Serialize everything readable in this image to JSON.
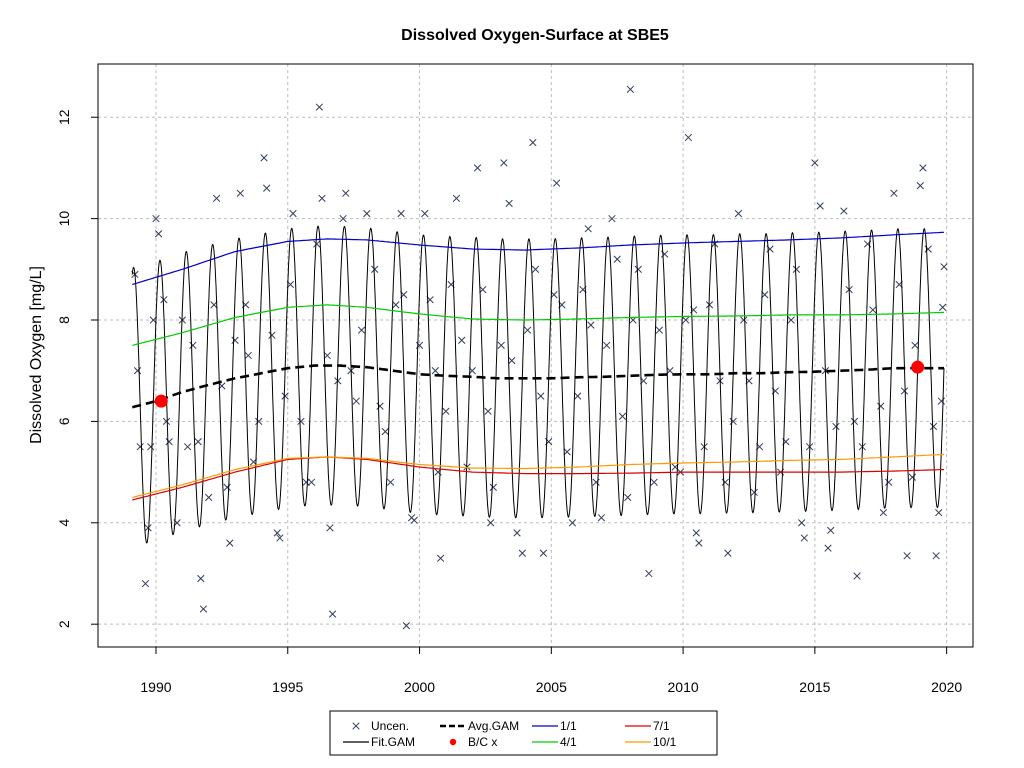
{
  "chart_data": {
    "type": "line",
    "title": "Dissolved Oxygen-Surface at SBE5",
    "xlabel": "",
    "ylabel": "Dissolved Oxygen [mg/L]",
    "xlim": [
      1987.8,
      2021.0
    ],
    "ylim": [
      1.55,
      13.05
    ],
    "xticks": [
      1990,
      1995,
      2000,
      2005,
      2010,
      2015,
      2020
    ],
    "yticks": [
      2,
      4,
      6,
      8,
      10,
      12
    ],
    "grid": true,
    "legend_position": "bottom",
    "colors": {
      "uncen": "#2f3c5a",
      "fit_gam": "#000000",
      "avg_gam": "#000000",
      "bc": "#ff0000",
      "q1": "#0000cc",
      "q4": "#00cc00",
      "q7": "#dd0000",
      "q10": "#ff9900",
      "grid": "#bdbdbd"
    },
    "legend": [
      {
        "key": "uncen",
        "label": "Uncen.",
        "marker": "x"
      },
      {
        "key": "fit",
        "label": "Fit.GAM",
        "marker": "line"
      },
      {
        "key": "avg",
        "label": "Avg.GAM",
        "marker": "dash"
      },
      {
        "key": "bc",
        "label": "B/C x",
        "marker": "dot"
      },
      {
        "key": "q1",
        "label": "1/1",
        "marker": "line"
      },
      {
        "key": "q4",
        "label": "4/1",
        "marker": "line"
      },
      {
        "key": "q7",
        "label": "7/1",
        "marker": "line"
      },
      {
        "key": "q10",
        "label": "10/1",
        "marker": "line"
      }
    ],
    "fit_gam": {
      "x_range": [
        1989.1,
        2019.9
      ],
      "amplitude": 2.75,
      "peak_phase": 0.15
    },
    "series": [
      {
        "name": "1/1",
        "x": [
          1989.1,
          1991,
          1993,
          1995,
          1996.5,
          1998,
          2000,
          2002,
          2004,
          2006,
          2008,
          2010,
          2012,
          2014,
          2016,
          2018,
          2019.9
        ],
        "values": [
          8.7,
          9.0,
          9.35,
          9.55,
          9.6,
          9.58,
          9.48,
          9.4,
          9.38,
          9.42,
          9.48,
          9.52,
          9.55,
          9.58,
          9.62,
          9.68,
          9.73
        ]
      },
      {
        "name": "4/1",
        "x": [
          1989.1,
          1991,
          1993,
          1995,
          1996.5,
          1998,
          2000,
          2002,
          2004,
          2006,
          2008,
          2010,
          2012,
          2014,
          2016,
          2018,
          2019.9
        ],
        "values": [
          7.5,
          7.75,
          8.05,
          8.25,
          8.3,
          8.25,
          8.12,
          8.02,
          8.0,
          8.02,
          8.05,
          8.07,
          8.08,
          8.1,
          8.1,
          8.12,
          8.15
        ]
      },
      {
        "name": "7/1",
        "x": [
          1989.1,
          1991,
          1993,
          1995,
          1996.5,
          1998,
          2000,
          2002,
          2004,
          2006,
          2008,
          2010,
          2012,
          2014,
          2016,
          2018,
          2019.9
        ],
        "values": [
          4.45,
          4.7,
          5.0,
          5.25,
          5.3,
          5.25,
          5.1,
          5.0,
          4.97,
          4.97,
          4.98,
          5.0,
          5.0,
          5.0,
          5.0,
          5.02,
          5.05
        ]
      },
      {
        "name": "10/1",
        "x": [
          1989.1,
          1991,
          1993,
          1995,
          1996.5,
          1998,
          2000,
          2002,
          2004,
          2006,
          2008,
          2010,
          2012,
          2014,
          2016,
          2018,
          2019.9
        ],
        "values": [
          4.5,
          4.75,
          5.05,
          5.27,
          5.3,
          5.27,
          5.15,
          5.08,
          5.07,
          5.1,
          5.15,
          5.18,
          5.2,
          5.23,
          5.25,
          5.3,
          5.35
        ]
      },
      {
        "name": "Avg.GAM",
        "x": [
          1989.1,
          1990,
          1991,
          1992,
          1993,
          1994,
          1995,
          1996,
          1997,
          1998,
          1999,
          2000,
          2001,
          2002,
          2003,
          2004,
          2005,
          2006,
          2007,
          2008,
          2009,
          2010,
          2011,
          2012,
          2013,
          2014,
          2015,
          2016,
          2017,
          2018,
          2019,
          2019.9
        ],
        "values": [
          6.28,
          6.4,
          6.58,
          6.72,
          6.85,
          6.95,
          7.05,
          7.1,
          7.1,
          7.07,
          7.0,
          6.93,
          6.9,
          6.88,
          6.85,
          6.85,
          6.85,
          6.87,
          6.88,
          6.9,
          6.92,
          6.93,
          6.93,
          6.95,
          6.95,
          6.97,
          6.98,
          7.0,
          7.02,
          7.05,
          7.05,
          7.05
        ]
      }
    ],
    "bc_points": [
      {
        "x": 1990.2,
        "y": 6.4
      },
      {
        "x": 2018.9,
        "y": 7.07
      }
    ],
    "uncen_points": [
      [
        1989.2,
        8.9
      ],
      [
        1989.3,
        7.0
      ],
      [
        1989.4,
        5.5
      ],
      [
        1989.6,
        2.8
      ],
      [
        1989.7,
        3.9
      ],
      [
        1989.8,
        5.5
      ],
      [
        1989.9,
        8.0
      ],
      [
        1990.0,
        10.0
      ],
      [
        1990.1,
        9.7
      ],
      [
        1990.3,
        8.4
      ],
      [
        1990.4,
        6.0
      ],
      [
        1990.5,
        5.6
      ],
      [
        1990.8,
        4.0
      ],
      [
        1991.0,
        8.0
      ],
      [
        1991.2,
        5.5
      ],
      [
        1991.4,
        7.5
      ],
      [
        1991.6,
        5.6
      ],
      [
        1991.7,
        2.9
      ],
      [
        1991.8,
        2.3
      ],
      [
        1992.0,
        4.5
      ],
      [
        1992.2,
        8.3
      ],
      [
        1992.3,
        10.4
      ],
      [
        1992.5,
        6.7
      ],
      [
        1992.7,
        4.7
      ],
      [
        1992.8,
        3.6
      ],
      [
        1993.0,
        7.6
      ],
      [
        1993.2,
        10.5
      ],
      [
        1993.4,
        8.3
      ],
      [
        1993.5,
        7.3
      ],
      [
        1993.7,
        5.2
      ],
      [
        1993.9,
        6.0
      ],
      [
        1994.1,
        11.2
      ],
      [
        1994.2,
        10.6
      ],
      [
        1994.4,
        7.7
      ],
      [
        1994.6,
        3.8
      ],
      [
        1994.7,
        3.7
      ],
      [
        1994.9,
        6.5
      ],
      [
        1995.1,
        8.7
      ],
      [
        1995.2,
        10.1
      ],
      [
        1995.5,
        6.0
      ],
      [
        1995.7,
        4.8
      ],
      [
        1995.9,
        4.8
      ],
      [
        1996.1,
        9.5
      ],
      [
        1996.2,
        12.2
      ],
      [
        1996.3,
        10.4
      ],
      [
        1996.5,
        7.3
      ],
      [
        1996.6,
        3.9
      ],
      [
        1996.7,
        2.2
      ],
      [
        1996.9,
        6.8
      ],
      [
        1997.1,
        10.0
      ],
      [
        1997.2,
        10.5
      ],
      [
        1997.4,
        7.0
      ],
      [
        1997.6,
        6.4
      ],
      [
        1997.8,
        7.8
      ],
      [
        1998.0,
        10.1
      ],
      [
        1998.3,
        9.0
      ],
      [
        1998.5,
        6.3
      ],
      [
        1998.7,
        5.8
      ],
      [
        1998.9,
        4.8
      ],
      [
        1999.1,
        8.3
      ],
      [
        1999.3,
        10.1
      ],
      [
        1999.4,
        8.5
      ],
      [
        1999.5,
        1.97
      ],
      [
        1999.7,
        4.1
      ],
      [
        1999.8,
        4.05
      ],
      [
        2000.0,
        7.5
      ],
      [
        2000.2,
        10.1
      ],
      [
        2000.4,
        8.4
      ],
      [
        2000.6,
        7.0
      ],
      [
        2000.7,
        5.0
      ],
      [
        2000.8,
        3.3
      ],
      [
        2001.0,
        6.2
      ],
      [
        2001.2,
        8.7
      ],
      [
        2001.4,
        10.4
      ],
      [
        2001.6,
        7.6
      ],
      [
        2001.8,
        5.1
      ],
      [
        2002.0,
        7.0
      ],
      [
        2002.2,
        11.0
      ],
      [
        2002.4,
        8.6
      ],
      [
        2002.6,
        6.2
      ],
      [
        2002.7,
        4.0
      ],
      [
        2002.8,
        4.7
      ],
      [
        2003.1,
        7.5
      ],
      [
        2003.2,
        11.1
      ],
      [
        2003.4,
        10.3
      ],
      [
        2003.5,
        7.2
      ],
      [
        2003.7,
        3.8
      ],
      [
        2003.9,
        3.4
      ],
      [
        2004.1,
        7.8
      ],
      [
        2004.3,
        11.5
      ],
      [
        2004.4,
        9.0
      ],
      [
        2004.6,
        6.5
      ],
      [
        2004.7,
        3.4
      ],
      [
        2004.9,
        5.6
      ],
      [
        2005.1,
        8.5
      ],
      [
        2005.2,
        10.7
      ],
      [
        2005.4,
        8.3
      ],
      [
        2005.6,
        5.4
      ],
      [
        2005.8,
        4.0
      ],
      [
        2006.0,
        6.5
      ],
      [
        2006.2,
        8.6
      ],
      [
        2006.4,
        9.8
      ],
      [
        2006.5,
        7.9
      ],
      [
        2006.7,
        4.8
      ],
      [
        2006.9,
        4.1
      ],
      [
        2007.1,
        7.5
      ],
      [
        2007.3,
        10.0
      ],
      [
        2007.5,
        9.2
      ],
      [
        2007.7,
        6.1
      ],
      [
        2007.9,
        4.5
      ],
      [
        2008.0,
        12.55
      ],
      [
        2008.1,
        8.0
      ],
      [
        2008.3,
        9.0
      ],
      [
        2008.5,
        6.8
      ],
      [
        2008.7,
        3.0
      ],
      [
        2008.9,
        4.8
      ],
      [
        2009.1,
        7.8
      ],
      [
        2009.3,
        9.3
      ],
      [
        2009.5,
        7.0
      ],
      [
        2009.7,
        5.1
      ],
      [
        2009.9,
        5.0
      ],
      [
        2010.1,
        8.0
      ],
      [
        2010.2,
        11.6
      ],
      [
        2010.4,
        8.2
      ],
      [
        2010.5,
        3.8
      ],
      [
        2010.6,
        3.6
      ],
      [
        2010.8,
        5.5
      ],
      [
        2011.0,
        8.3
      ],
      [
        2011.2,
        9.5
      ],
      [
        2011.4,
        6.8
      ],
      [
        2011.6,
        4.8
      ],
      [
        2011.7,
        3.4
      ],
      [
        2011.9,
        6.0
      ],
      [
        2012.1,
        10.1
      ],
      [
        2012.3,
        8.0
      ],
      [
        2012.5,
        6.8
      ],
      [
        2012.7,
        4.6
      ],
      [
        2012.9,
        5.5
      ],
      [
        2013.1,
        8.5
      ],
      [
        2013.3,
        9.4
      ],
      [
        2013.5,
        6.6
      ],
      [
        2013.7,
        5.0
      ],
      [
        2013.9,
        5.6
      ],
      [
        2014.1,
        8.0
      ],
      [
        2014.3,
        9.0
      ],
      [
        2014.5,
        4.0
      ],
      [
        2014.6,
        3.7
      ],
      [
        2014.8,
        5.5
      ],
      [
        2015.0,
        11.1
      ],
      [
        2015.2,
        10.25
      ],
      [
        2015.4,
        7.0
      ],
      [
        2015.5,
        3.5
      ],
      [
        2015.6,
        3.85
      ],
      [
        2015.8,
        5.9
      ],
      [
        2016.1,
        10.15
      ],
      [
        2016.3,
        8.6
      ],
      [
        2016.5,
        6.0
      ],
      [
        2016.6,
        2.95
      ],
      [
        2016.8,
        5.5
      ],
      [
        2017.0,
        9.5
      ],
      [
        2017.2,
        8.2
      ],
      [
        2017.5,
        6.3
      ],
      [
        2017.6,
        4.2
      ],
      [
        2017.8,
        4.8
      ],
      [
        2018.0,
        10.5
      ],
      [
        2018.2,
        8.7
      ],
      [
        2018.4,
        6.6
      ],
      [
        2018.5,
        3.35
      ],
      [
        2018.7,
        4.9
      ],
      [
        2018.8,
        7.5
      ],
      [
        2019.0,
        10.65
      ],
      [
        2019.1,
        11.0
      ],
      [
        2019.3,
        9.4
      ],
      [
        2019.5,
        5.9
      ],
      [
        2019.6,
        3.35
      ],
      [
        2019.7,
        4.2
      ],
      [
        2019.8,
        6.4
      ],
      [
        2019.9,
        9.05
      ],
      [
        2019.85,
        8.25
      ]
    ]
  }
}
